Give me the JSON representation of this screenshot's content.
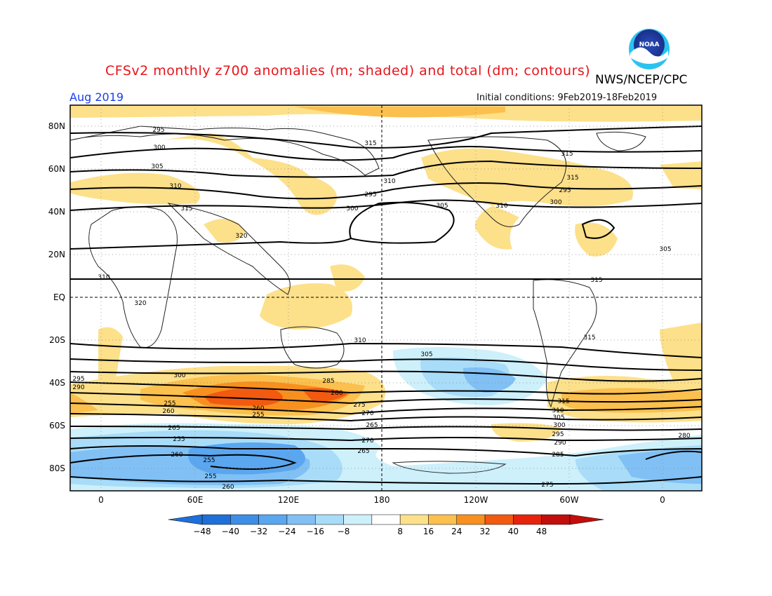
{
  "header": {
    "title": "CFSv2 monthly z700 anomalies (m; shaded) and total (dm; contours)",
    "agency": "NWS/NCEP/CPC",
    "month": "Aug 2019",
    "initial_conditions": "Initial conditions: 9Feb2019-18Feb2019",
    "logo_text": "NOAA"
  },
  "map": {
    "lat_labels": [
      "80N",
      "60N",
      "40N",
      "20N",
      "EQ",
      "20S",
      "40S",
      "60S",
      "80S"
    ],
    "lon_labels": [
      "0",
      "60E",
      "120E",
      "180",
      "120W",
      "60W",
      "0"
    ],
    "contour_labels": [
      "295",
      "300",
      "305",
      "310",
      "315",
      "320",
      "315",
      "310",
      "295",
      "300",
      "305",
      "310",
      "315",
      "315",
      "295",
      "300",
      "305",
      "310",
      "320",
      "315",
      "315",
      "310",
      "305",
      "300",
      "295",
      "290",
      "285",
      "280",
      "275",
      "270",
      "265",
      "260",
      "255",
      "255",
      "260",
      "265",
      "255",
      "260",
      "255",
      "255",
      "260",
      "265",
      "270",
      "275",
      "280",
      "285",
      "290",
      "295",
      "300",
      "305",
      "310",
      "315"
    ]
  },
  "colorbar": {
    "labels": [
      "-48",
      "-40",
      "-32",
      "-24",
      "-16",
      "-8",
      "8",
      "16",
      "24",
      "32",
      "40",
      "48"
    ],
    "colors": [
      "#1f6fd8",
      "#3d8ee6",
      "#5aa6ef",
      "#80c0f5",
      "#a8dcf8",
      "#cdf0fb",
      "#ffffff",
      "#fde08a",
      "#fbc04d",
      "#f8901f",
      "#f25a10",
      "#e8230c",
      "#c20e0c"
    ]
  }
}
